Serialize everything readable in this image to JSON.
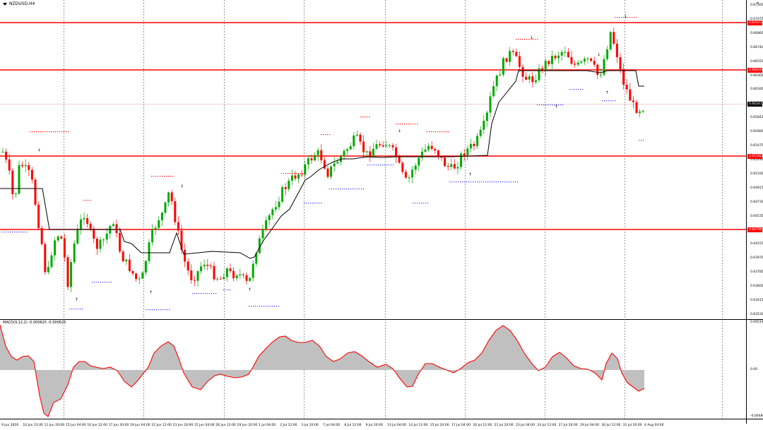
{
  "symbol_title": "NZDUSD,H4",
  "indicator_title": "MACD(9,12,2) -0.000625 -0.000625",
  "colors": {
    "bull": "#00aa00",
    "bear": "#ff0000",
    "line": "#000000",
    "hline": "#ff0000",
    "osc_fill": "#c0c0c0",
    "osc_line": "#ff0000"
  },
  "price_scale": [
    "0.67260",
    "0.67075",
    "0.66860",
    "0.66740",
    "0.66555",
    "0.66365",
    "0.66160",
    "0.66000",
    "0.65842",
    "0.65660",
    "0.65475",
    "0.65290",
    "0.65100",
    "0.64915",
    "0.64730",
    "0.64535",
    "0.64340",
    "0.64155",
    "0.63970",
    "0.63785",
    "0.63600",
    "0.63415",
    "0.63230"
  ],
  "price_tags": [
    {
      "value": "0.67073",
      "style": "red"
    },
    {
      "value": "0.66620",
      "style": "red"
    },
    {
      "value": "0.66241",
      "style": "black"
    },
    {
      "value": "0.65582",
      "style": "red"
    },
    {
      "value": "0.64790",
      "style": "red"
    }
  ],
  "indicator_scale": [
    "0.005199",
    "0.00",
    "-0.004868"
  ],
  "date_labels": [
    "9 Jun 2020",
    "10 Jun 12:00",
    "11 Jun 20:00",
    "15 Jun 04:00",
    "16 Jun 12:00",
    "17 Jun 20:00",
    "19 Jun 04:00",
    "22 Jun 12:00",
    "23 Jun 20:00",
    "25 Jun 04:00",
    "26 Jun 12:00",
    "29 Jun 20:00",
    "1 Jul 04:00",
    "2 Jul 12:00",
    "3 Jul 20:00",
    "7 Jul 04:00",
    "8 Jul 12:00",
    "9 Jul 20:00",
    "13 Jul 04:00",
    "14 Jul 12:00",
    "15 Jul 20:00",
    "17 Jul 04:00",
    "20 Jul 12:00",
    "21 Jul 20:00",
    "23 Jul 04:00",
    "24 Jul 12:00",
    "27 Jul 20:00",
    "29 Jul 04:00",
    "30 Jul 12:00",
    "31 Jul 20:00",
    "4 Aug 04:00"
  ]
}
